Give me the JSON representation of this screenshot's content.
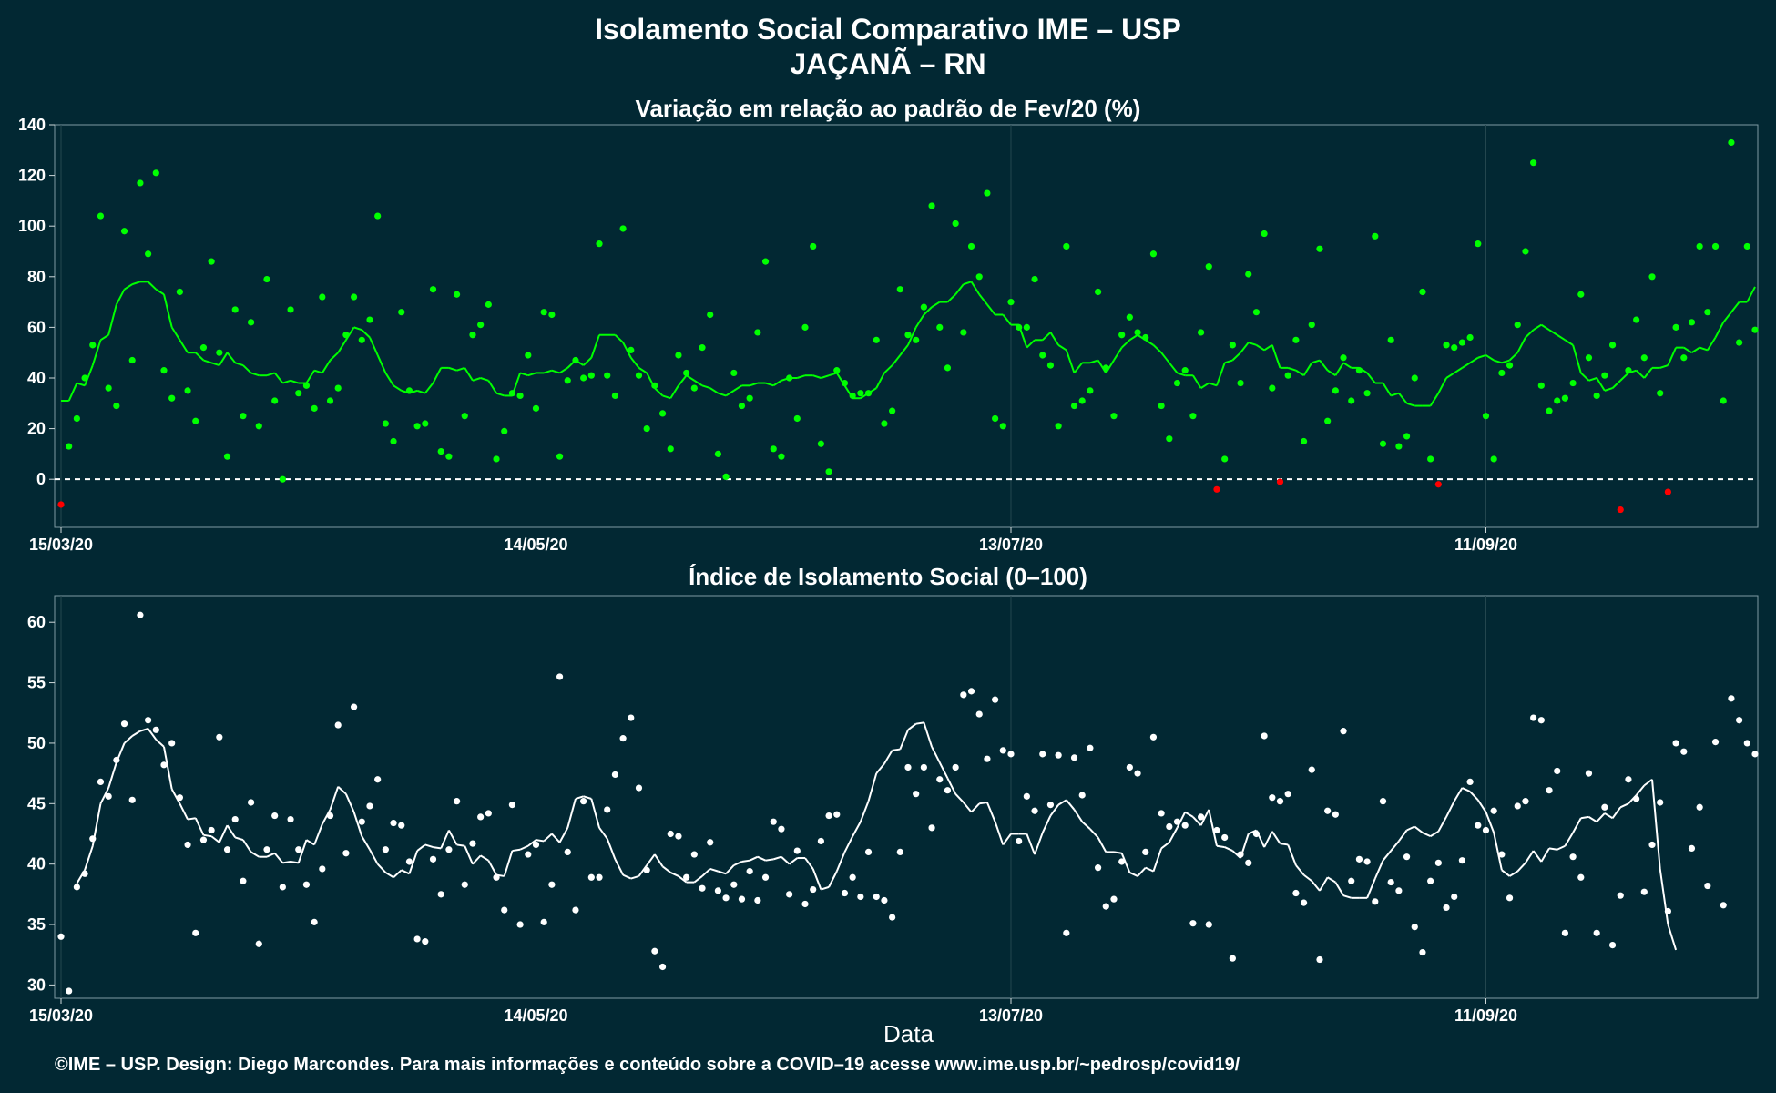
{
  "header": {
    "title_line1": "Isolamento Social Comparativo IME – USP",
    "title_line2": "JAÇANÃ – RN"
  },
  "colors": {
    "background": "#022833",
    "positive": "#00ff00",
    "negative": "#ff0000",
    "index": "#ffffff"
  },
  "chart_data": [
    {
      "type": "scatter",
      "title": "Variação em relação ao padrão de Fev/20 (%)",
      "xlabel": "Data",
      "x_ticks": [
        "15/03/20",
        "14/05/20",
        "13/07/20",
        "11/09/20"
      ],
      "y_ticks": [
        0,
        20,
        40,
        60,
        80,
        100,
        120,
        140
      ],
      "ylim": [
        -19,
        140
      ],
      "reference_line": 0,
      "x_start": "15/03/20",
      "series": [
        {
          "role": "points",
          "values": [
            -10,
            13,
            24,
            40,
            53,
            104,
            36,
            29,
            98,
            47,
            117,
            89,
            121,
            43,
            32,
            74,
            35,
            23,
            52,
            86,
            50,
            9,
            67,
            25,
            62,
            21,
            79,
            31,
            0,
            67,
            34,
            37,
            28,
            72,
            31,
            36,
            57,
            72,
            55,
            63,
            104,
            22,
            15,
            66,
            35,
            21,
            22,
            75,
            11,
            9,
            73,
            25,
            57,
            61,
            69,
            8,
            19,
            34,
            33,
            49,
            28,
            66,
            65,
            9,
            39,
            47,
            40,
            41,
            93,
            41,
            33,
            99,
            51,
            41,
            20,
            37,
            26,
            12,
            49,
            42,
            36,
            52,
            65,
            10,
            1,
            42,
            29,
            32,
            58,
            86,
            12,
            9,
            40,
            24,
            60,
            92,
            14,
            3,
            43,
            38,
            33,
            34,
            34,
            55,
            22,
            27,
            75,
            57,
            55,
            68,
            108,
            60,
            44,
            101,
            58,
            92,
            80,
            113,
            24,
            21,
            70,
            60,
            60,
            79,
            49,
            45,
            21,
            92,
            29,
            31,
            35,
            74,
            44,
            25,
            57,
            64,
            58,
            56,
            89,
            29,
            16,
            38,
            43,
            25,
            58,
            84,
            -4,
            8,
            53,
            38,
            81,
            66,
            97,
            36,
            -1,
            41,
            55,
            15,
            61,
            91,
            23,
            35,
            48,
            31,
            43,
            34,
            96,
            14,
            55,
            13,
            17,
            40,
            74,
            8,
            -2,
            53,
            52,
            54,
            56,
            93,
            25,
            8,
            42,
            45,
            61,
            90,
            125,
            37,
            27,
            31,
            32,
            38,
            73,
            48,
            33,
            41,
            53,
            -12,
            43,
            63,
            48,
            80,
            34,
            -5,
            60,
            48,
            62,
            92,
            66,
            92,
            31,
            133,
            54,
            92,
            59
          ]
        },
        {
          "role": "moving_average",
          "values": [
            31,
            31,
            38,
            37,
            45,
            55,
            57,
            69,
            75,
            77,
            78,
            78,
            75,
            73,
            60,
            55,
            50,
            50,
            47,
            46,
            45,
            50,
            46,
            45,
            42,
            41,
            41,
            42,
            38,
            39,
            38,
            38,
            43,
            42,
            47,
            50,
            55,
            60,
            59,
            56,
            49,
            42,
            37,
            35,
            34,
            35,
            34,
            38,
            44,
            44,
            43,
            44,
            39,
            40,
            39,
            34,
            33,
            33,
            42,
            41,
            42,
            42,
            43,
            42,
            44,
            47,
            45,
            48,
            57,
            57,
            57,
            54,
            48,
            44,
            42,
            36,
            33,
            32,
            37,
            41,
            39,
            37,
            36,
            34,
            33,
            35,
            37,
            37,
            38,
            38,
            37,
            39,
            40,
            40,
            41,
            41,
            40,
            41,
            42,
            37,
            32,
            32,
            34,
            36,
            42,
            45,
            49,
            53,
            60,
            65,
            68,
            70,
            70,
            73,
            77,
            78,
            73,
            69,
            65,
            65,
            61,
            61,
            52,
            55,
            55,
            58,
            53,
            51,
            42,
            46,
            46,
            47,
            42,
            47,
            52,
            55,
            57,
            55,
            53,
            50,
            46,
            42,
            41,
            41,
            36,
            38,
            37,
            46,
            47,
            50,
            54,
            53,
            51,
            53,
            44,
            44,
            43,
            41,
            46,
            47,
            43,
            41,
            46,
            44,
            44,
            42,
            38,
            38,
            33,
            34,
            30,
            29,
            29,
            29,
            34,
            40,
            42,
            44,
            46,
            48,
            49,
            47,
            46,
            47,
            50,
            56,
            59,
            61,
            59,
            57,
            55,
            53,
            42,
            39,
            40,
            35,
            36,
            39,
            42,
            43,
            40,
            44,
            44,
            45,
            52,
            52,
            50,
            52,
            51,
            56,
            62,
            66,
            70,
            70,
            76,
            75
          ]
        }
      ]
    },
    {
      "type": "scatter",
      "title": "Índice de Isolamento Social (0–100)",
      "xlabel": "Data",
      "x_ticks": [
        "15/03/20",
        "14/05/20",
        "13/07/20",
        "11/09/20"
      ],
      "y_ticks": [
        30,
        35,
        40,
        45,
        50,
        55,
        60
      ],
      "ylim": [
        28.9,
        62.2
      ],
      "x_start": "15/03/20",
      "series": [
        {
          "role": "points",
          "values": [
            34.0,
            29.5,
            38.1,
            39.2,
            42.1,
            46.8,
            45.6,
            48.6,
            51.6,
            45.3,
            60.6,
            51.9,
            51.1,
            48.2,
            50.0,
            45.5,
            41.6,
            34.3,
            42.0,
            42.8,
            50.5,
            41.2,
            43.7,
            38.6,
            45.1,
            33.4,
            41.2,
            44.0,
            38.1,
            43.7,
            41.2,
            38.3,
            35.2,
            39.6,
            44.0,
            51.5,
            40.9,
            53.0,
            43.5,
            44.8,
            47.0,
            41.2,
            43.4,
            43.2,
            40.2,
            33.8,
            33.6,
            40.4,
            37.5,
            41.2,
            45.2,
            38.3,
            41.7,
            43.9,
            44.2,
            38.9,
            36.2,
            44.9,
            35.0,
            40.8,
            41.6,
            35.2,
            38.3,
            55.5,
            41.0,
            36.2,
            45.2,
            38.9,
            38.9,
            44.5,
            47.4,
            50.4,
            52.1,
            46.3,
            39.5,
            32.8,
            31.5,
            42.5,
            42.3,
            38.9,
            40.8,
            38.0,
            41.8,
            37.8,
            37.2,
            38.3,
            37.1,
            39.4,
            37.0,
            38.9,
            43.5,
            42.9,
            37.5,
            41.1,
            36.7,
            37.9,
            41.9,
            44.0,
            44.1,
            37.6,
            38.9,
            37.3,
            41.0,
            37.3,
            37.0,
            35.6,
            41.0,
            48.0,
            45.8,
            48.0,
            43.0,
            47.0,
            46.1,
            48.0,
            54.0,
            54.3,
            52.4,
            48.7,
            53.6,
            49.4,
            49.1,
            41.9,
            45.6,
            44.4,
            49.1,
            44.9,
            49.0,
            34.3,
            48.8,
            45.7,
            49.6,
            39.7,
            36.5,
            37.1,
            40.2,
            48.0,
            47.5,
            41.0,
            50.5,
            44.2,
            43.1,
            43.5,
            43.2,
            35.1,
            43.9,
            35.0,
            42.8,
            42.2,
            32.2,
            40.8,
            40.1,
            42.5,
            50.6,
            45.5,
            45.2,
            45.8,
            37.6,
            36.8,
            47.8,
            32.1,
            44.4,
            44.1,
            51.0,
            38.6,
            40.4,
            40.2,
            36.9,
            45.2,
            38.5,
            37.8,
            40.6,
            34.8,
            32.7,
            38.6,
            40.1,
            36.4,
            37.3,
            40.3,
            46.8,
            43.2,
            42.8,
            44.4,
            40.8,
            37.2,
            44.8,
            45.2,
            52.1,
            51.9,
            46.1,
            47.7,
            34.3,
            40.6,
            38.9,
            47.5,
            34.3,
            44.7,
            33.3,
            37.4,
            47.0,
            45.4,
            37.7,
            41.6,
            45.1,
            36.1,
            50.0,
            49.3,
            41.3,
            44.7,
            38.2,
            50.1,
            36.6,
            53.7,
            51.9,
            50.0,
            49.1
          ]
        },
        {
          "role": "moving_average",
          "values": [
            null,
            null,
            38.4,
            39.5,
            41.5,
            45.0,
            46.3,
            48.4,
            50.0,
            50.6,
            51.0,
            51.2,
            50.3,
            49.7,
            46.2,
            45.0,
            43.7,
            43.8,
            42.4,
            42.3,
            41.8,
            43.2,
            42.2,
            42.0,
            41.0,
            40.6,
            40.6,
            40.9,
            40.1,
            40.2,
            40.1,
            42.0,
            41.6,
            43.3,
            44.5,
            46.4,
            45.8,
            44.3,
            42.3,
            41.2,
            40.0,
            39.3,
            38.9,
            39.5,
            39.2,
            41.1,
            41.6,
            41.4,
            41.3,
            42.8,
            41.6,
            41.5,
            40.0,
            40.7,
            40.3,
            39.1,
            39.0,
            41.1,
            41.2,
            41.5,
            42.0,
            41.9,
            42.5,
            41.8,
            43.0,
            45.4,
            45.6,
            45.4,
            43.0,
            42.1,
            40.4,
            39.1,
            38.8,
            39.0,
            39.9,
            40.8,
            39.8,
            39.3,
            39.0,
            38.5,
            38.5,
            39.0,
            39.6,
            39.4,
            39.2,
            39.9,
            40.2,
            40.3,
            40.6,
            40.3,
            40.4,
            40.6,
            40.0,
            40.5,
            40.5,
            39.6,
            37.9,
            38.1,
            39.4,
            41.0,
            42.3,
            43.5,
            45.2,
            47.5,
            48.3,
            49.4,
            49.5,
            51.1,
            51.6,
            51.7,
            49.7,
            48.4,
            47.1,
            45.8,
            45.1,
            44.3,
            45.0,
            45.1,
            43.5,
            41.6,
            42.5,
            42.5,
            42.5,
            40.8,
            42.6,
            44.0,
            44.9,
            45.3,
            44.5,
            43.5,
            42.9,
            42.2,
            41.0,
            41.0,
            40.9,
            39.3,
            39.0,
            39.7,
            39.4,
            41.3,
            41.8,
            43.0,
            44.3,
            43.9,
            43.2,
            44.5,
            41.5,
            41.4,
            41.1,
            40.5,
            42.5,
            42.8,
            41.4,
            42.7,
            41.7,
            41.6,
            39.9,
            39.1,
            38.6,
            37.8,
            38.9,
            38.5,
            37.4,
            37.2,
            37.2,
            37.2,
            38.8,
            40.3,
            41.1,
            41.9,
            42.8,
            43.1,
            42.6,
            42.3,
            42.7,
            43.9,
            45.2,
            46.3,
            46.0,
            45.3,
            44.3,
            42.6,
            39.5,
            39.0,
            39.4,
            40.1,
            41.1,
            40.2,
            41.3,
            41.2,
            41.5,
            42.6,
            43.8,
            43.9,
            43.5,
            44.2,
            43.8,
            44.7,
            45.0,
            45.7,
            46.5,
            47.0,
            39.6,
            35.0,
            32.9
          ]
        }
      ]
    }
  ],
  "footer": {
    "x_axis_label": "Data",
    "caption": "©IME – USP. Design: Diego Marcondes. Para mais informações e conteúdo sobre a COVID–19 acesse www.ime.usp.br/~pedrosp/covid19/"
  }
}
